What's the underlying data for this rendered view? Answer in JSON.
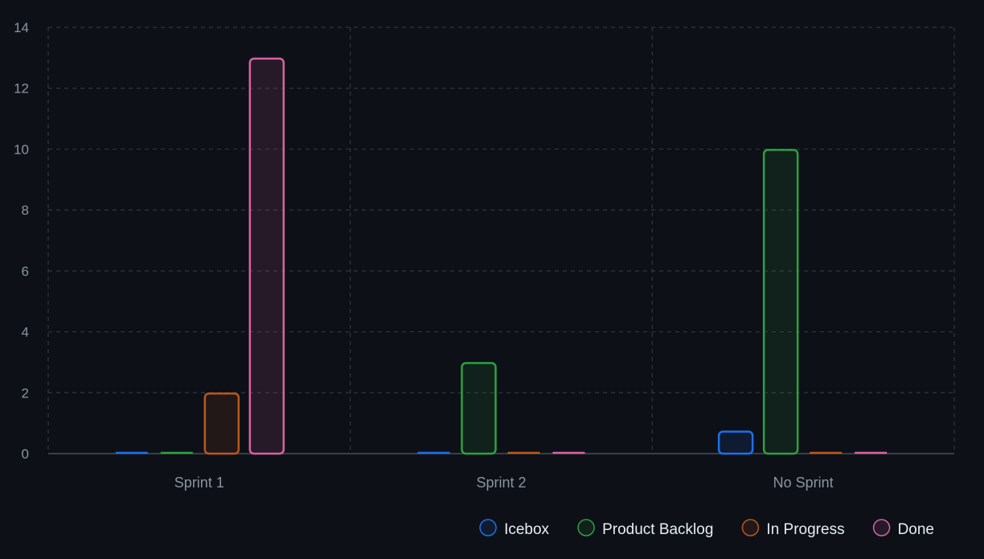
{
  "chart_data": {
    "type": "bar",
    "title": "",
    "xlabel": "",
    "ylabel": "",
    "categories": [
      "Sprint 1",
      "Sprint 2",
      "No Sprint"
    ],
    "ylim": [
      0,
      14
    ],
    "yticks": [
      "0",
      "2",
      "4",
      "6",
      "8",
      "10",
      "12",
      "14"
    ],
    "grid": true,
    "legend_position": "bottom-right",
    "series": [
      {
        "name": "Icebox",
        "values": [
          0,
          0,
          0.75
        ],
        "color": "#1f6feb"
      },
      {
        "name": "Product Backlog",
        "values": [
          0,
          3,
          10
        ],
        "color": "#2ea043"
      },
      {
        "name": "In Progress",
        "values": [
          2,
          0,
          0
        ],
        "color": "#bd561d"
      },
      {
        "name": "Done",
        "values": [
          13,
          0,
          0
        ],
        "color": "#db61a2"
      }
    ]
  },
  "colors": {
    "background": "#0d1117",
    "grid": "#30363d",
    "axis_text": "#8b949e",
    "legend_text": "#e6edf3"
  }
}
